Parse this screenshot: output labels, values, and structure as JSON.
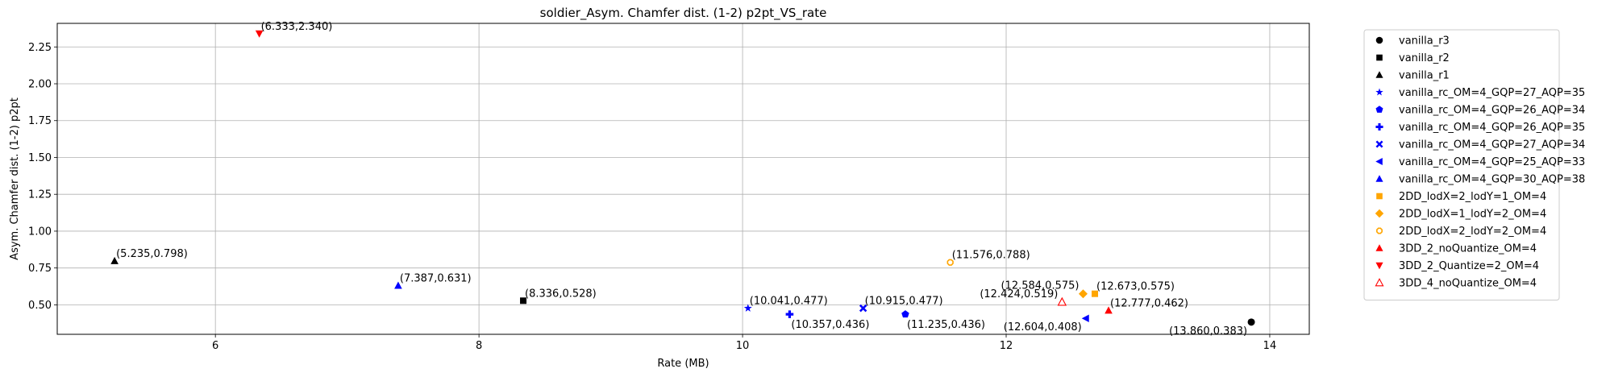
{
  "chart_data": {
    "type": "scatter",
    "title": "soldier_Asym. Chamfer dist. (1-2) p2pt_VS_rate",
    "xlabel": "Rate (MB)",
    "ylabel": "Asym. Chamfer dist. (1-2) p2pt",
    "xlim": [
      4.8,
      14.3
    ],
    "ylim": [
      0.3,
      2.41
    ],
    "xticks": [
      6,
      8,
      10,
      12,
      14
    ],
    "yticks": [
      0.5,
      0.75,
      1.0,
      1.25,
      1.5,
      1.75,
      2.0,
      2.25
    ],
    "xtick_labels": [
      "6",
      "8",
      "10",
      "12",
      "14"
    ],
    "ytick_labels": [
      "0.50",
      "0.75",
      "1.00",
      "1.25",
      "1.50",
      "1.75",
      "2.00",
      "2.25"
    ],
    "grid": true,
    "legend_position": "outside-right",
    "series": [
      {
        "name": "vanilla_r3",
        "marker": "circle",
        "color": "#000000",
        "points": [
          {
            "x": 13.86,
            "y": 0.383,
            "label": "(13.860,0.383)",
            "label_pos": "below-left"
          }
        ]
      },
      {
        "name": "vanilla_r2",
        "marker": "square",
        "color": "#000000",
        "points": [
          {
            "x": 8.336,
            "y": 0.528,
            "label": "(8.336,0.528)",
            "label_pos": "above-right"
          }
        ]
      },
      {
        "name": "vanilla_r1",
        "marker": "triangle-up",
        "color": "#000000",
        "points": [
          {
            "x": 5.235,
            "y": 0.798,
            "label": "(5.235,0.798)",
            "label_pos": "above-right"
          }
        ]
      },
      {
        "name": "vanilla_rc_OM=4_GQP=27_AQP=35",
        "marker": "star",
        "color": "#0000ff",
        "points": [
          {
            "x": 10.041,
            "y": 0.477,
            "label": "(10.041,0.477)",
            "label_pos": "above-right"
          }
        ]
      },
      {
        "name": "vanilla_rc_OM=4_GQP=26_AQP=34",
        "marker": "pentagon",
        "color": "#0000ff",
        "points": [
          {
            "x": 11.235,
            "y": 0.436,
            "label": "(11.235,0.436)",
            "label_pos": "below-right"
          }
        ]
      },
      {
        "name": "vanilla_rc_OM=4_GQP=26_AQP=35",
        "marker": "plus",
        "color": "#0000ff",
        "points": [
          {
            "x": 10.357,
            "y": 0.436,
            "label": "(10.357,0.436)",
            "label_pos": "below-right"
          }
        ]
      },
      {
        "name": "vanilla_rc_OM=4_GQP=27_AQP=34",
        "marker": "x",
        "color": "#0000ff",
        "points": [
          {
            "x": 10.915,
            "y": 0.477,
            "label": "(10.915,0.477)",
            "label_pos": "above-right"
          }
        ]
      },
      {
        "name": "vanilla_rc_OM=4_GQP=25_AQP=33",
        "marker": "triangle-left",
        "color": "#0000ff",
        "points": [
          {
            "x": 12.604,
            "y": 0.408,
            "label": "(12.604,0.408)",
            "label_pos": "below-left"
          }
        ]
      },
      {
        "name": "vanilla_rc_OM=4_GQP=30_AQP=38",
        "marker": "triangle-up",
        "color": "#0000ff",
        "points": [
          {
            "x": 7.387,
            "y": 0.631,
            "label": "(7.387,0.631)",
            "label_pos": "above-right"
          }
        ]
      },
      {
        "name": "2DD_lodX=2_lodY=1_OM=4",
        "marker": "square",
        "color": "#ffa500",
        "points": [
          {
            "x": 12.673,
            "y": 0.575,
            "label": "(12.673,0.575)",
            "label_pos": "above-right"
          }
        ]
      },
      {
        "name": "2DD_lodX=1_lodY=2_OM=4",
        "marker": "diamond",
        "color": "#ffa500",
        "points": [
          {
            "x": 12.584,
            "y": 0.575,
            "label": "(12.584,0.575)",
            "label_pos": "above-left"
          }
        ]
      },
      {
        "name": "2DD_lodX=2_lodY=2_OM=4",
        "marker": "octagon-open",
        "color": "#ffa500",
        "points": [
          {
            "x": 11.576,
            "y": 0.788,
            "label": "(11.576,0.788)",
            "label_pos": "above-right"
          }
        ]
      },
      {
        "name": "3DD_2_noQuantize_OM=4",
        "marker": "triangle-up",
        "color": "#ff0000",
        "points": [
          {
            "x": 12.777,
            "y": 0.462,
            "label": "(12.777,0.462)",
            "label_pos": "above-right"
          }
        ]
      },
      {
        "name": "3DD_2_Quantize=2_OM=4",
        "marker": "triangle-down",
        "color": "#ff0000",
        "points": [
          {
            "x": 6.333,
            "y": 2.34,
            "label": "(6.333,2.340)",
            "label_pos": "above-right"
          }
        ]
      },
      {
        "name": "3DD_4_noQuantize_OM=4",
        "marker": "triangle-up-open",
        "color": "#ff0000",
        "points": [
          {
            "x": 12.424,
            "y": 0.519,
            "label": "(12.424,0.519)",
            "label_pos": "above-left"
          }
        ]
      }
    ]
  }
}
